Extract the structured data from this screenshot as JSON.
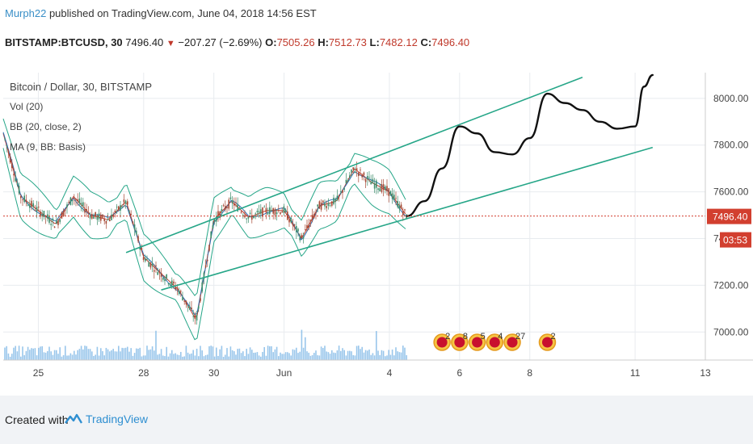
{
  "header": {
    "author": "Murph22",
    "published_text": "published on TradingView.com, June 04, 2018 14:56 EST",
    "symbol": "BITSTAMP:BTCUSD, 30",
    "last": "7496.40",
    "change": "−207.27 (−2.69%)",
    "o_label": "O:",
    "o_value": "7505.26",
    "h_label": "H:",
    "h_value": "7512.73",
    "l_label": "L:",
    "l_value": "7482.12",
    "c_label": "C:",
    "c_value": "7496.40"
  },
  "legend": {
    "title": "Bitcoin / Dollar, 30, BITSTAMP",
    "items": [
      "Vol (20)",
      "BB (20, close, 2)",
      "MA (9, BB: Basis)"
    ]
  },
  "footer": {
    "created_with": "Created with",
    "brand": "TradingView"
  },
  "colors": {
    "channel": "#26a688",
    "bands": "#26a688",
    "basis": "#c0392b",
    "ma": "#2c6fb3",
    "price_line": "#d23f2f",
    "price_badge": "#d23f2f",
    "volume": "#7fb8e6",
    "drawing": "#111111",
    "grid": "#e8ebef"
  },
  "chart_data": {
    "type": "line",
    "title": "Bitcoin / Dollar, 30, BITSTAMP",
    "xlabel": "",
    "ylabel": "",
    "x_ticks": [
      "25",
      "28",
      "30",
      "Jun",
      "4",
      "6",
      "8",
      "11",
      "13"
    ],
    "y_ticks": [
      "8000.00",
      "7800.00",
      "7600.00",
      "7200.00",
      "7000.00"
    ],
    "ylim": [
      6880,
      8110
    ],
    "last_price": 7496.4,
    "last_price_label": "7496.40",
    "countdown_label": "03:53",
    "partial_tick_label": "74",
    "series": [
      {
        "name": "",
        "x": [
          "May 24 00:00",
          "May 24 12:00",
          "May 25 00:00",
          "May 25 12:00",
          "May 26 00:00",
          "May 26 12:00",
          "May 27 00:00",
          "May 27 12:00",
          "May 28 00:00",
          "May 28 12:00",
          "May 29 00:00",
          "May 29 12:00",
          "May 30 00:00",
          "May 30 12:00",
          "May 31 00:00",
          "May 31 12:00",
          "Jun 1 00:00",
          "Jun 1 12:00",
          "Jun 2 00:00",
          "Jun 2 12:00",
          "Jun 3 00:00",
          "Jun 3 12:00",
          "Jun 4 00:00",
          "Jun 4 12:00"
        ],
        "values": [
          7850,
          7580,
          7520,
          7460,
          7580,
          7500,
          7480,
          7560,
          7320,
          7250,
          7180,
          7050,
          7480,
          7560,
          7490,
          7520,
          7520,
          7400,
          7540,
          7560,
          7700,
          7640,
          7600,
          7496
        ]
      }
    ],
    "channel_lines": [
      {
        "start": [
          "May 27 12:00",
          7340
        ],
        "end": [
          "Jun 9 12:00",
          8090
        ]
      },
      {
        "start": [
          "May 28 12:00",
          7180
        ],
        "end": [
          "Jun 11 12:00",
          7790
        ]
      }
    ],
    "hand_drawn_projection": [
      [
        "Jun 4 12:00",
        7496
      ],
      [
        "Jun 5 00:00",
        7560
      ],
      [
        "Jun 5 12:00",
        7700
      ],
      [
        "Jun 6 00:00",
        7880
      ],
      [
        "Jun 6 12:00",
        7850
      ],
      [
        "Jun 7 00:00",
        7770
      ],
      [
        "Jun 7 12:00",
        7760
      ],
      [
        "Jun 8 00:00",
        7830
      ],
      [
        "Jun 8 12:00",
        8020
      ],
      [
        "Jun 9 00:00",
        7980
      ],
      [
        "Jun 9 12:00",
        7950
      ],
      [
        "Jun 10 00:00",
        7900
      ],
      [
        "Jun 10 12:00",
        7870
      ],
      [
        "Jun 11 00:00",
        7880
      ],
      [
        "Jun 11 06:00",
        8050
      ],
      [
        "Jun 11 12:00",
        8100
      ]
    ],
    "events": [
      {
        "date": "Jun 5 12:00",
        "label": "2"
      },
      {
        "date": "Jun 6 00:00",
        "label": "8"
      },
      {
        "date": "Jun 6 12:00",
        "label": "5"
      },
      {
        "date": "Jun 7 00:00",
        "label": "4"
      },
      {
        "date": "Jun 7 12:00",
        "label": "27"
      },
      {
        "date": "Jun 8 12:00",
        "label": "2"
      }
    ]
  }
}
